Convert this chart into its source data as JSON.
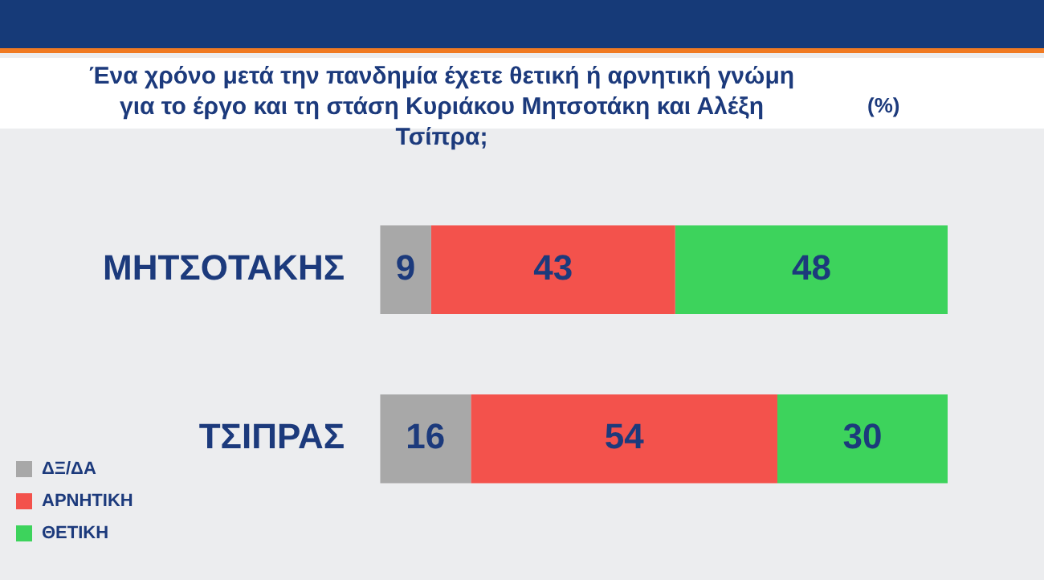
{
  "chart_data": {
    "type": "bar",
    "orientation": "horizontal",
    "stacked": true,
    "title": "Ένα χρόνο μετά την πανδημία έχετε θετική ή αρνητική γνώμη για το έργο και τη στάση Κυριάκου Μητσοτάκη και Αλέξη Τσίπρα;",
    "annotations": [
      "(%)"
    ],
    "categories": [
      "ΜΗΤΣΟΤΑΚΗΣ",
      "ΤΣΙΠΡΑΣ"
    ],
    "series": [
      {
        "name": "ΔΞ/ΔΑ",
        "color": "#a8a8a8",
        "values": [
          9,
          16
        ]
      },
      {
        "name": "ΑΡΝΗΤΙΚΗ",
        "color": "#f3524c",
        "values": [
          43,
          54
        ]
      },
      {
        "name": "ΘΕΤΙΚΗ",
        "color": "#3dd35c",
        "values": [
          48,
          30
        ]
      }
    ],
    "xlim": [
      0,
      100
    ],
    "tick_labels": false,
    "legend": "left",
    "data_labels": true
  }
}
